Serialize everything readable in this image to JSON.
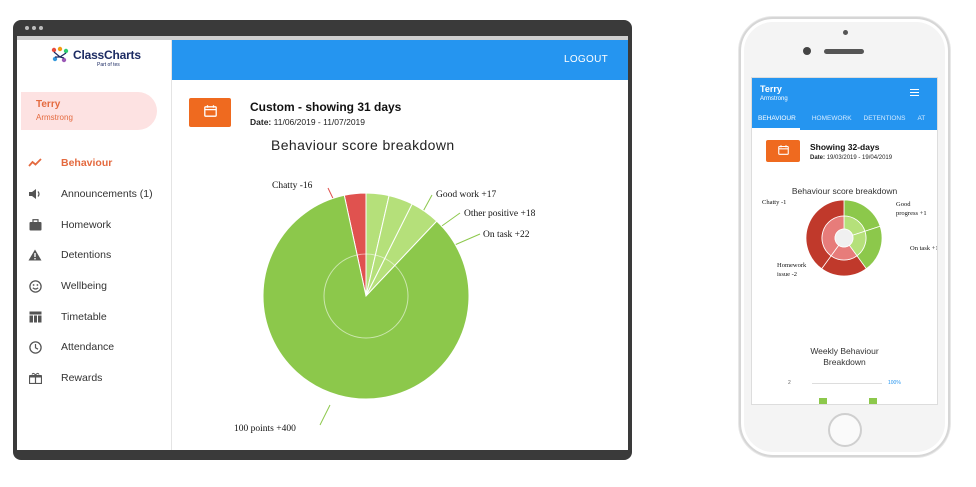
{
  "tablet": {
    "logo": {
      "brand": "ClassCharts",
      "sub": "Part of tes"
    },
    "user": {
      "first_name": "Terry",
      "last_name": "Armstrong"
    },
    "nav": [
      {
        "label": "Behaviour",
        "icon": "trend-line-icon",
        "active": true
      },
      {
        "label": "Announcements (1)",
        "icon": "speaker-icon"
      },
      {
        "label": "Homework",
        "icon": "briefcase-icon"
      },
      {
        "label": "Detentions",
        "icon": "warning-icon"
      },
      {
        "label": "Wellbeing",
        "icon": "smiley-icon"
      },
      {
        "label": "Timetable",
        "icon": "table-icon"
      },
      {
        "label": "Attendance",
        "icon": "clock-icon"
      },
      {
        "label": "Rewards",
        "icon": "gift-icon"
      }
    ],
    "header": {
      "logout_label": "LOGOUT"
    },
    "range": {
      "title": "Custom - showing 31 days",
      "date_label": "Date:",
      "date_value": "11/06/2019 - 11/07/2019"
    },
    "chart_title": "Behaviour score breakdown"
  },
  "phone": {
    "user": {
      "first_name": "Terry",
      "last_name": "Armstrong"
    },
    "tabs": [
      "BEHAVIOUR",
      "HOMEWORK",
      "DETENTIONS",
      "AT"
    ],
    "range": {
      "title": "Showing 32-days",
      "date_label": "Date:",
      "date_value": "19/03/2019 - 19/04/2019"
    },
    "chart_title": "Behaviour score breakdown",
    "weekly_title_1": "Weekly Behaviour",
    "weekly_title_2": "Breakdown",
    "weekly_axis_left": "2",
    "weekly_axis_right": "100%"
  },
  "colors": {
    "accent_orange": "#ef6a1f",
    "header_blue": "#2595f0",
    "positive_green": "#8cc84b",
    "negative_red": "#e0524f"
  },
  "chart_data": [
    {
      "type": "pie",
      "title": "Behaviour score breakdown",
      "slices": [
        {
          "label": "Chatty -16",
          "value": 16,
          "kind": "negative"
        },
        {
          "label": "Good work +17",
          "value": 17,
          "kind": "positive"
        },
        {
          "label": "Other positive +18",
          "value": 18,
          "kind": "positive"
        },
        {
          "label": "On task +22",
          "value": 22,
          "kind": "positive"
        },
        {
          "label": "100 points +400",
          "value": 400,
          "kind": "positive"
        }
      ]
    },
    {
      "type": "pie",
      "title": "Behaviour score breakdown",
      "slices": [
        {
          "label": "Chatty -1",
          "value": 1,
          "kind": "negative"
        },
        {
          "label": "Good progress +1",
          "value": 1,
          "kind": "positive"
        },
        {
          "label": "On task +1",
          "value": 1,
          "kind": "positive"
        },
        {
          "label": "Homework issue -2",
          "value": 2,
          "kind": "negative"
        }
      ]
    }
  ]
}
